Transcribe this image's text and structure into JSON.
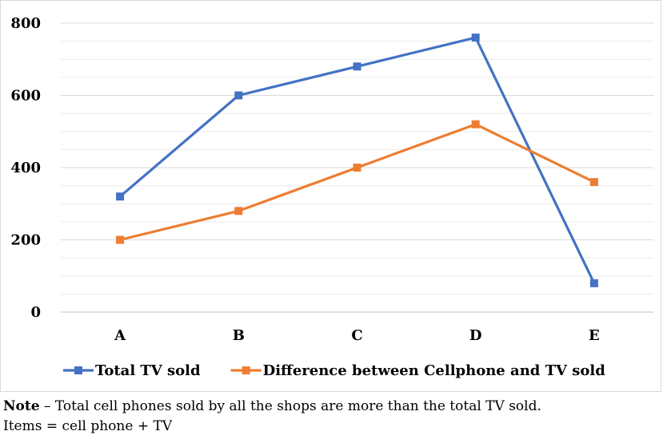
{
  "chart_data": {
    "type": "line",
    "categories": [
      "A",
      "B",
      "C",
      "D",
      "E"
    ],
    "series": [
      {
        "name": "Total TV sold",
        "values": [
          320,
          600,
          680,
          760,
          80
        ],
        "color": "#4472c4"
      },
      {
        "name": "Difference between Cellphone and TV sold",
        "values": [
          200,
          280,
          400,
          520,
          360
        ],
        "color": "#ed7d31"
      }
    ],
    "ylim": [
      0,
      800
    ],
    "yticks": [
      0,
      200,
      400,
      600,
      800
    ],
    "grid": true,
    "legend": "bottom"
  },
  "note": {
    "key": "Note",
    "text": " – Total cell phones sold by all the shops are more than the total TV sold.",
    "line2": "Items = cell phone + TV"
  }
}
